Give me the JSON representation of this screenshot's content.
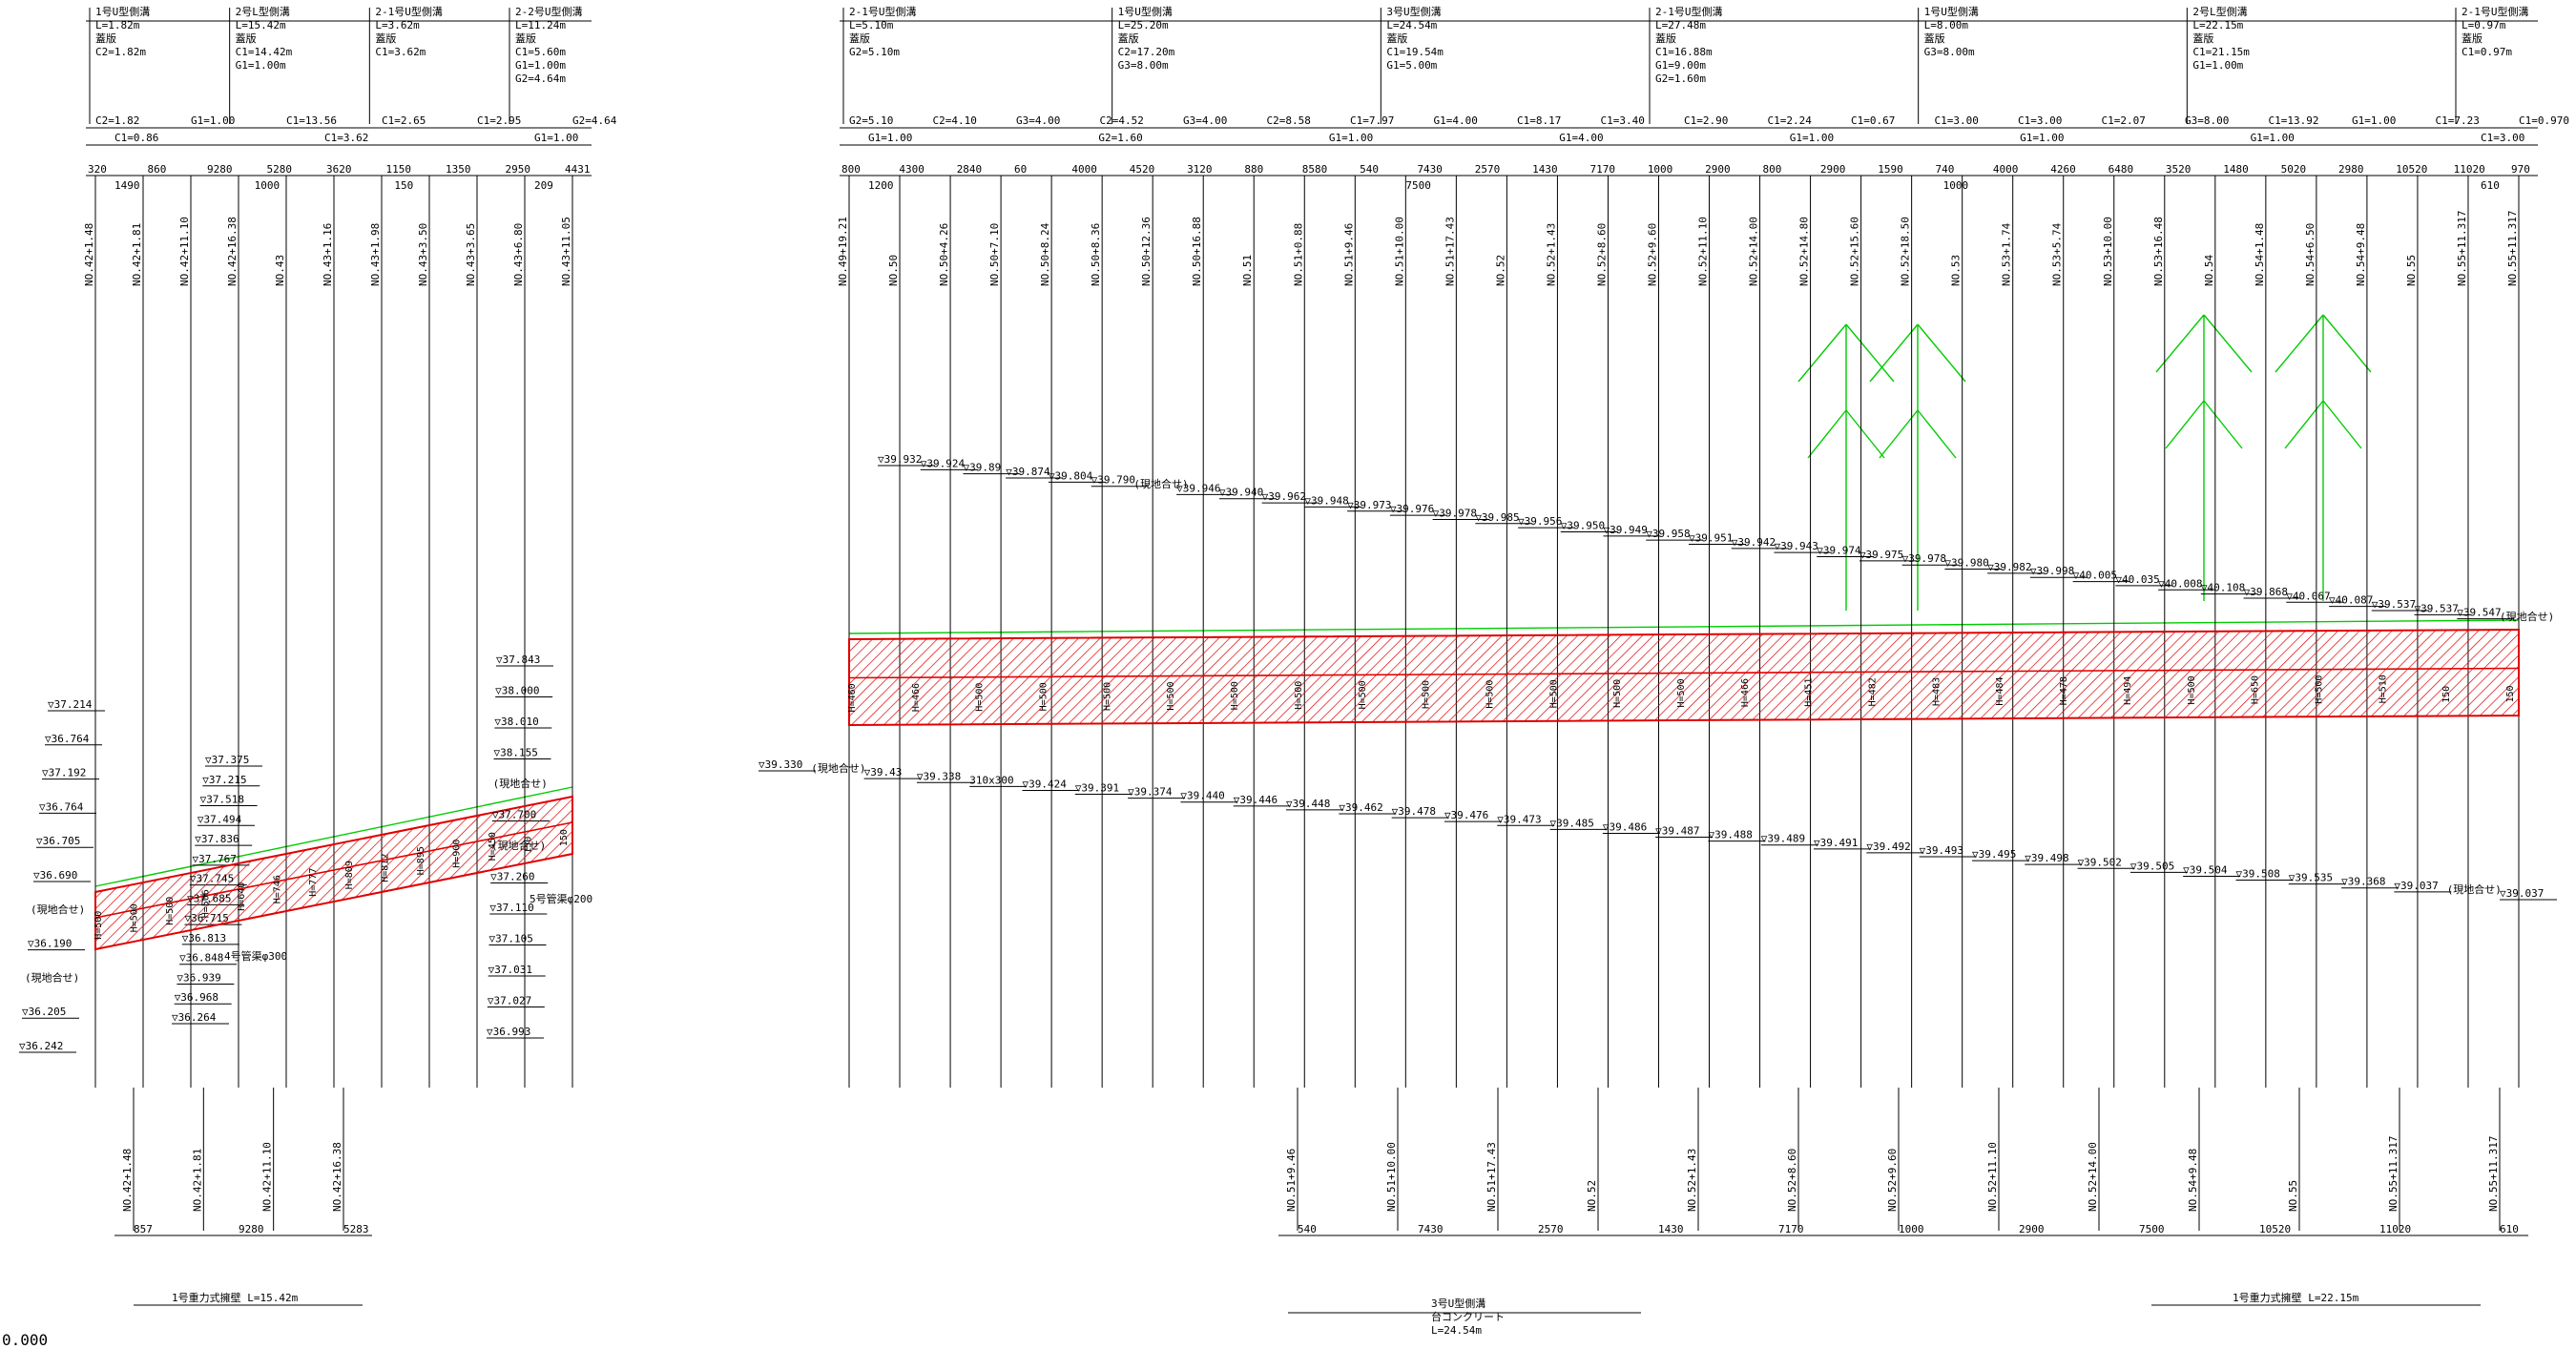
{
  "colors": {
    "ink": "#000000",
    "section": "#e00000",
    "guide": "#00cc00",
    "background": "#ffffff"
  },
  "corner_label": "0.000",
  "panels": [
    {
      "id": "left",
      "headers": [
        [
          "1号U型側溝",
          "L=1.82m",
          "蓋版",
          "C2=1.82m"
        ],
        [
          "2号L型側溝",
          "L=15.42m",
          "蓋版",
          "C1=14.42m",
          "G1=1.00m"
        ],
        [
          "2-1号U型側溝",
          "L=3.62m",
          "蓋版",
          "C1=3.62m"
        ],
        [
          "2-2号U型側溝",
          "L=11.24m",
          "蓋版",
          "C1=5.60m",
          "G1=1.00m",
          "G2=4.64m"
        ]
      ],
      "band1": [
        "C2=1.82",
        "G1=1.00",
        "C1=13.56",
        "C1=2.65",
        "C1=2.95",
        "G2=4.64"
      ],
      "band2": [
        "C1=0.86",
        "C1=3.62",
        "G1=1.00"
      ],
      "top_dims": [
        "320",
        "860",
        "9280",
        "5280",
        "3620",
        "1150",
        "1350",
        "2950",
        "4431"
      ],
      "sub_dims": [
        "1490",
        "1000",
        "150",
        "209"
      ],
      "stations": [
        "NO.42+1.48",
        "NO.42+1.81",
        "NO.42+11.10",
        "NO.42+16.38",
        "NO.43",
        "NO.43+1.16",
        "NO.43+1.98",
        "NO.43+3.50",
        "NO.43+3.65",
        "NO.43+6.80",
        "NO.43+11.05"
      ],
      "elevations_left": [
        "▽37.214",
        "▽36.764",
        "▽37.192",
        "▽36.764",
        "▽36.705",
        "▽36.690",
        "(現地合せ)",
        "▽36.190",
        "(現地合せ)",
        "▽36.205",
        "▽36.242"
      ],
      "elevations_mid": [
        "▽37.375",
        "▽37.215",
        "▽37.518",
        "▽37.494",
        "▽37.836",
        "▽37.767",
        "▽37.745",
        "▽37.685",
        "▽36.715",
        "▽36.813",
        "▽36.848",
        "▽36.939",
        "▽36.968",
        "▽36.264"
      ],
      "elevations_right": [
        "▽37.843",
        "▽38.000",
        "▽38.010",
        "▽38.155",
        "(現地合せ)",
        "▽37.700",
        "(現地合せ)",
        "▽37.260",
        "▽37.110",
        "▽37.105",
        "▽37.031",
        "▽37.027",
        "▽36.993"
      ],
      "pipes": [
        "4号管渠φ300",
        "5号管渠φ200"
      ],
      "heights": [
        "H=500",
        "H=500",
        "H=500",
        "H=506",
        "H=640",
        "H=746",
        "H=777",
        "H=809",
        "H=812",
        "H=895",
        "H=900",
        "H=450",
        "150",
        "150"
      ],
      "bottom_stations": [
        "NO.42+1.48",
        "NO.42+1.81",
        "NO.42+11.10",
        "NO.42+16.38"
      ],
      "bottom_dims": [
        "857",
        "9280",
        "5283"
      ],
      "retaining_wall": "1号重力式擁壁 L=15.42m"
    },
    {
      "id": "right",
      "headers": [
        [
          "2-1号U型側溝",
          "L=5.10m",
          "蓋版",
          "G2=5.10m"
        ],
        [
          "1号U型側溝",
          "L=25.20m",
          "蓋版",
          "C2=17.20m",
          "G3=8.00m"
        ],
        [
          "3号U型側溝",
          "L=24.54m",
          "蓋版",
          "C1=19.54m",
          "G1=5.00m"
        ],
        [
          "2-1号U型側溝",
          "L=27.48m",
          "蓋版",
          "C1=16.88m",
          "G1=9.00m",
          "G2=1.60m"
        ],
        [
          "1号U型側溝",
          "L=8.00m",
          "蓋版",
          "G3=8.00m"
        ],
        [
          "2号L型側溝",
          "L=22.15m",
          "蓋版",
          "C1=21.15m",
          "G1=1.00m"
        ],
        [
          "2-1号U型側溝",
          "L=0.97m",
          "蓋版",
          "C1=0.97m"
        ]
      ],
      "band1": [
        "G2=5.10",
        "C2=4.10",
        "G3=4.00",
        "C2=4.52",
        "G3=4.00",
        "C2=8.58",
        "C1=7.97",
        "G1=4.00",
        "C1=8.17",
        "C1=3.40",
        "C1=2.90",
        "C1=2.24",
        "C1=0.67",
        "C1=3.00",
        "C1=3.00",
        "C1=2.07",
        "G3=8.00",
        "C1=13.92",
        "G1=1.00",
        "C1=7.23",
        "C1=0.970"
      ],
      "band2": [
        "G1=1.00",
        "G2=1.60",
        "G1=1.00",
        "G1=4.00",
        "G1=1.00",
        "G1=1.00",
        "G1=1.00",
        "C1=3.00"
      ],
      "top_dims": [
        "800",
        "4300",
        "2840",
        "60",
        "4000",
        "4520",
        "3120",
        "880",
        "8580",
        "540",
        "7430",
        "2570",
        "1430",
        "7170",
        "1000",
        "2900",
        "800",
        "2900",
        "1590",
        "740",
        "4000",
        "4260",
        "6480",
        "3520",
        "1480",
        "5020",
        "2980",
        "10520",
        "11020",
        "970"
      ],
      "sub_dims": [
        "1200",
        "7500",
        "1000",
        "610"
      ],
      "stations": [
        "NO.49+19.21",
        "NO.50",
        "NO.50+4.26",
        "NO.50+7.10",
        "NO.50+8.24",
        "NO.50+8.36",
        "NO.50+12.36",
        "NO.50+16.88",
        "NO.51",
        "NO.51+0.88",
        "NO.51+9.46",
        "NO.51+10.00",
        "NO.51+17.43",
        "NO.52",
        "NO.52+1.43",
        "NO.52+8.60",
        "NO.52+9.60",
        "NO.52+11.10",
        "NO.52+14.00",
        "NO.52+14.80",
        "NO.52+15.60",
        "NO.52+18.50",
        "NO.53",
        "NO.53+1.74",
        "NO.53+5.74",
        "NO.53+10.00",
        "NO.53+16.48",
        "NO.54",
        "NO.54+1.48",
        "NO.54+6.50",
        "NO.54+9.48",
        "NO.55",
        "NO.55+11.317",
        "NO.55+11.317"
      ],
      "elevations_upper": [
        "▽39.932",
        "▽39.924",
        "▽39.89",
        "▽39.874",
        "▽39.804",
        "▽39.790",
        "(現地合せ)",
        "▽39.946",
        "▽39.940",
        "▽39.962",
        "▽39.948",
        "▽39.973",
        "▽39.976",
        "▽39.978",
        "▽39.985",
        "▽39.956",
        "▽39.950",
        "▽39.949",
        "▽39.958",
        "▽39.951",
        "▽39.942",
        "▽39.943",
        "▽39.974",
        "▽39.975",
        "▽39.978",
        "▽39.980",
        "▽39.982",
        "▽39.998",
        "▽40.005",
        "▽40.035",
        "▽40.008",
        "▽40.108",
        "▽39.868",
        "▽40.067",
        "▽40.087",
        "▽39.537",
        "▽39.537",
        "▽39.547",
        "(現地合せ)"
      ],
      "elevations_lower": [
        "▽39.330",
        "(現地合せ)",
        "▽39.43",
        "▽39.338",
        "310x300",
        "▽39.424",
        "▽39.391",
        "▽39.374",
        "▽39.440",
        "▽39.446",
        "▽39.448",
        "▽39.462",
        "▽39.478",
        "▽39.476",
        "▽39.473",
        "▽39.485",
        "▽39.486",
        "▽39.487",
        "▽39.488",
        "▽39.489",
        "▽39.491",
        "▽39.492",
        "▽39.493",
        "▽39.495",
        "▽39.498",
        "▽39.502",
        "▽39.505",
        "▽39.504",
        "▽39.508",
        "▽39.535",
        "▽39.368",
        "▽39.037",
        "(現地合せ)",
        "▽39.037"
      ],
      "heights": [
        "H=460",
        "H=466",
        "H=500",
        "H=500",
        "H=500",
        "H=500",
        "H=500",
        "H=500",
        "H=500",
        "H=500",
        "H=500",
        "H=500",
        "H=500",
        "H=500",
        "H=466",
        "H=451",
        "H=482",
        "H=483",
        "H=484",
        "H=478",
        "H=494",
        "H=500",
        "H=650",
        "H=500",
        "H=510",
        "150",
        "150"
      ],
      "bottom_stations": [
        "NO.51+9.46",
        "NO.51+10.00",
        "NO.51+17.43",
        "NO.52",
        "NO.52+1.43",
        "NO.52+8.60",
        "NO.52+9.60",
        "NO.52+11.10",
        "NO.52+14.00",
        "NO.54+9.48",
        "NO.55",
        "NO.55+11.317",
        "NO.55+11.317"
      ],
      "bottom_dims": [
        "540",
        "7430",
        "2570",
        "1430",
        "7170",
        "1000",
        "2900",
        "7500",
        "10520",
        "11020",
        "610"
      ],
      "wall_labels": [
        "3号U型側溝",
        "台コンクリート",
        "L=24.54m",
        "1号重力式擁壁 L=22.15m"
      ]
    }
  ]
}
